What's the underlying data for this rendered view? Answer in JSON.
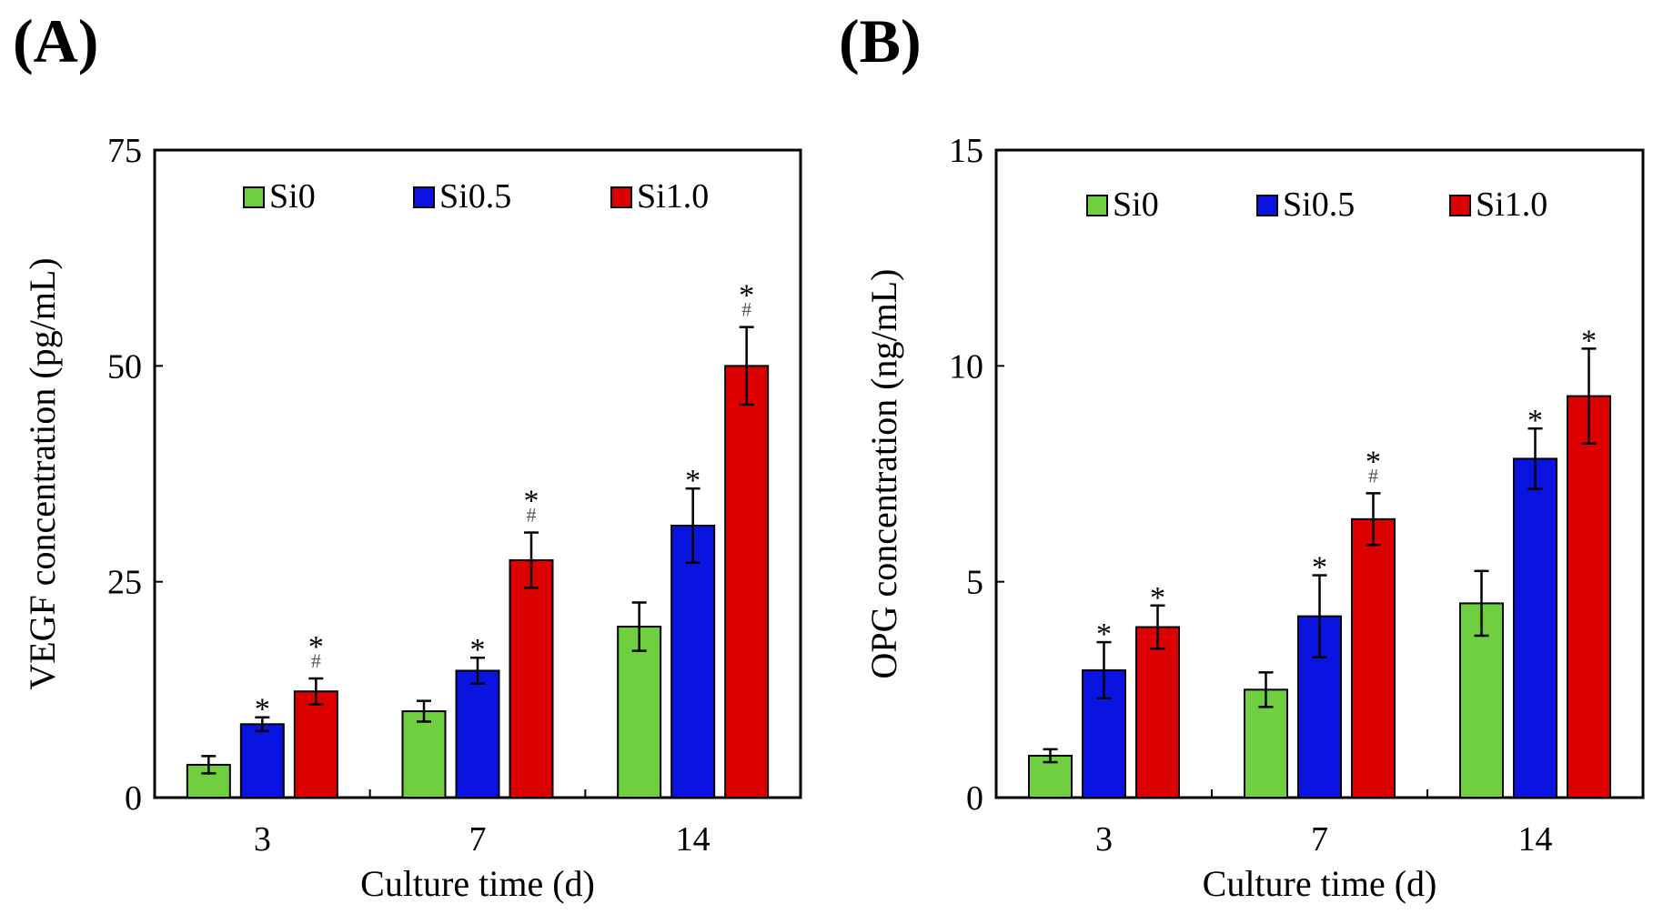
{
  "colors": {
    "Si0": "#6fcf3f",
    "Si0.5": "#0a14e0",
    "Si1.0": "#dc0000",
    "frame": "#000000"
  },
  "chart_data": [
    {
      "type": "bar",
      "panel_label": "(A)",
      "categories": [
        "3",
        "7",
        "14"
      ],
      "xlabel": "Culture time (d)",
      "ylabel": "VEGF concentration (pg/mL)",
      "ylim": [
        0,
        75
      ],
      "yticks": [
        "0",
        "25",
        "50",
        "75"
      ],
      "legend_position": "top",
      "series": [
        {
          "name": "Si0",
          "values": [
            3.8,
            10.0,
            19.8
          ],
          "errors": [
            1.0,
            1.2,
            2.8
          ],
          "marks": [
            [],
            [],
            []
          ]
        },
        {
          "name": "Si0.5",
          "values": [
            8.5,
            14.7,
            31.5
          ],
          "errors": [
            0.8,
            1.5,
            4.3
          ],
          "marks": [
            [
              "*"
            ],
            [
              "*"
            ],
            [
              "*"
            ]
          ]
        },
        {
          "name": "Si1.0",
          "values": [
            12.3,
            27.5,
            50.0
          ],
          "errors": [
            1.5,
            3.2,
            4.5
          ],
          "marks": [
            [
              "*",
              "#"
            ],
            [
              "*",
              "#"
            ],
            [
              "*",
              "#"
            ]
          ]
        }
      ]
    },
    {
      "type": "bar",
      "panel_label": "(B)",
      "categories": [
        "3",
        "7",
        "14"
      ],
      "xlabel": "Culture time (d)",
      "ylabel": "OPG concentration (ng/mL)",
      "ylim": [
        0,
        15
      ],
      "yticks": [
        "0",
        "5",
        "10",
        "15"
      ],
      "legend_position": "top",
      "series": [
        {
          "name": "Si0",
          "values": [
            0.97,
            2.5,
            4.5
          ],
          "errors": [
            0.15,
            0.4,
            0.75
          ],
          "marks": [
            [],
            [],
            []
          ]
        },
        {
          "name": "Si0.5",
          "values": [
            2.95,
            4.2,
            7.85
          ],
          "errors": [
            0.65,
            0.95,
            0.7
          ],
          "marks": [
            [
              "*"
            ],
            [
              "*"
            ],
            [
              "*"
            ]
          ]
        },
        {
          "name": "Si1.0",
          "values": [
            3.95,
            6.45,
            9.3
          ],
          "errors": [
            0.5,
            0.6,
            1.1
          ],
          "marks": [
            [
              "*"
            ],
            [
              "*",
              "#"
            ],
            [
              "*"
            ]
          ]
        }
      ]
    }
  ]
}
